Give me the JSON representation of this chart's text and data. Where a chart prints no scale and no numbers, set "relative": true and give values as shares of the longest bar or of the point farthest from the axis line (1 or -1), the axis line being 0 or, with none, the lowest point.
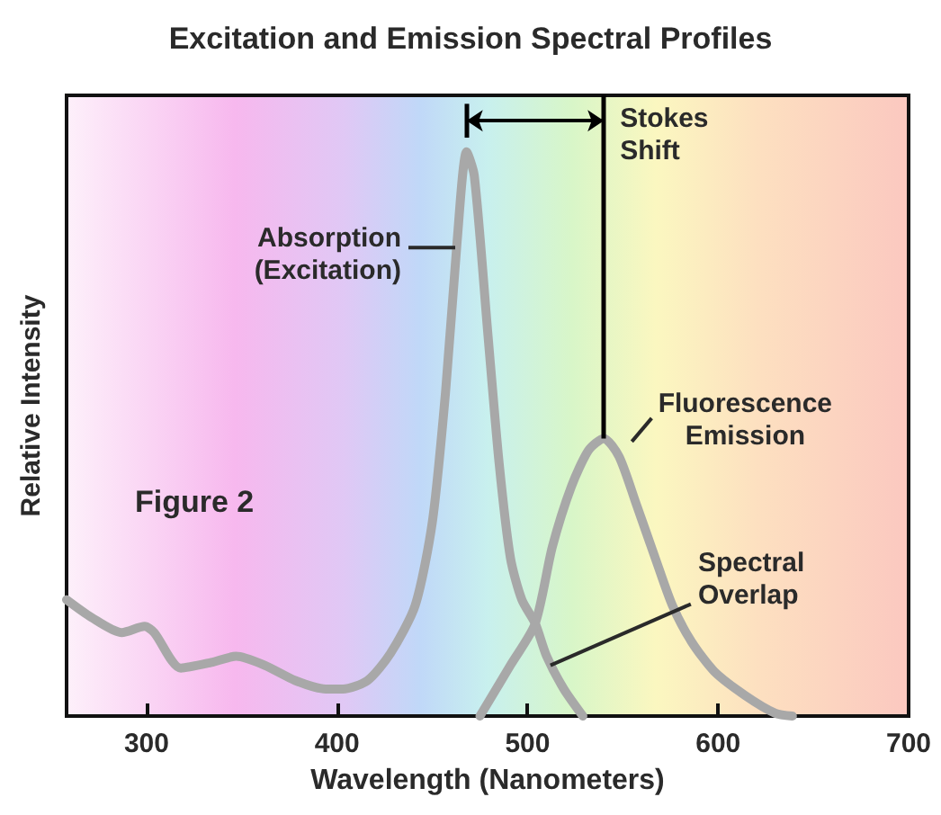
{
  "chart_data": {
    "type": "line",
    "title": "Excitation and Emission Spectral Profiles",
    "xlabel": "Wavelength (Nanometers)",
    "ylabel": "Relative Intensity",
    "relative": true,
    "xlim": [
      258,
      700
    ],
    "xticks": [
      300,
      400,
      500,
      600,
      700
    ],
    "marker": "none",
    "line_style": "solid",
    "series": [
      {
        "color": "#a8a8a8",
        "x": [
          258,
          271,
          287,
          299,
          304,
          318,
          334,
          347,
          362,
          378,
          394,
          403,
          416,
          428,
          441,
          450,
          457,
          463,
          468,
          472,
          479,
          485,
          491,
          497,
          504,
          510,
          519,
          529
        ],
        "values": [
          0.206,
          0.175,
          0.148,
          0.159,
          0.148,
          0.085,
          0.095,
          0.106,
          0.09,
          0.063,
          0.048,
          0.048,
          0.063,
          0.111,
          0.196,
          0.344,
          0.577,
          0.841,
          1.0,
          0.958,
          0.683,
          0.45,
          0.28,
          0.206,
          0.164,
          0.106,
          0.048,
          0
        ]
      },
      {
        "color": "#a8a8a8",
        "x": [
          475,
          491,
          504,
          513,
          523,
          532,
          540,
          548,
          557,
          567,
          576,
          586,
          598,
          614,
          630,
          639
        ],
        "values": [
          0,
          0.09,
          0.164,
          0.3,
          0.407,
          0.471,
          0.492,
          0.46,
          0.376,
          0.28,
          0.196,
          0.132,
          0.079,
          0.037,
          0.005,
          0
        ]
      }
    ],
    "ref_lines": [
      {
        "axis": "x",
        "value": 540,
        "label": "Stokes\nShift",
        "color": "#000000",
        "line_style": "solid"
      }
    ],
    "annotations": [
      "Figure 2",
      {
        "text": "Absorption\n(Excitation)",
        "x": 462,
        "y": 0.83
      },
      {
        "text": "Fluorescence\nEmission",
        "x": 550,
        "y": 0.48
      },
      {
        "text": "Spectral\nOverlap",
        "x": 512,
        "y": 0.09
      }
    ]
  }
}
